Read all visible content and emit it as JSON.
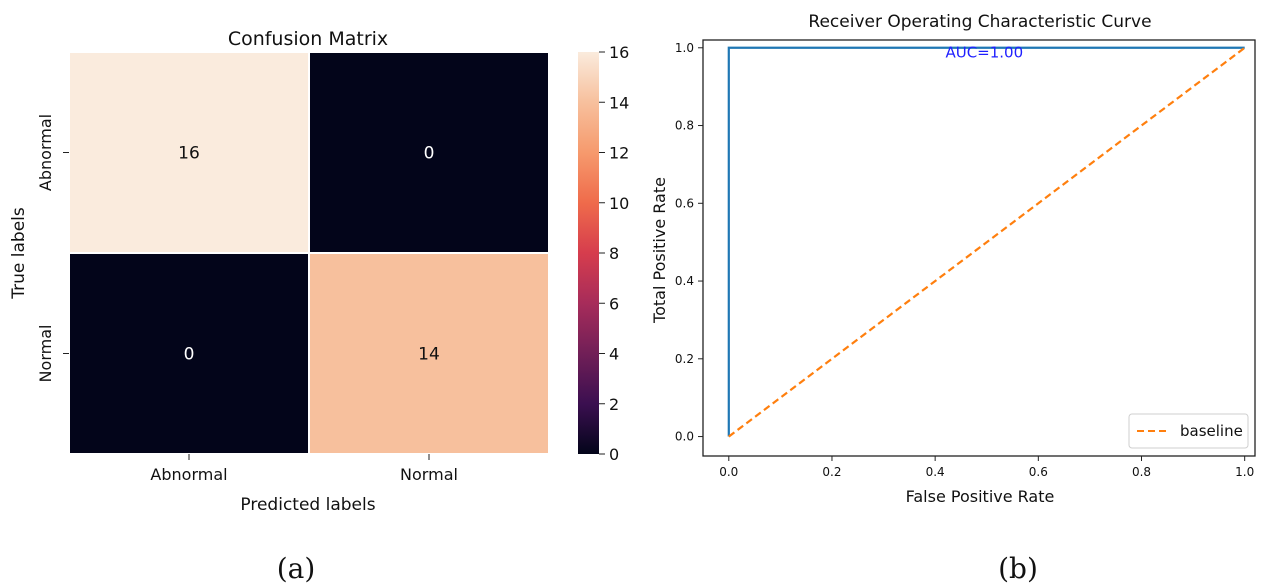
{
  "panels": {
    "a_label": "(a)",
    "b_label": "(b)"
  },
  "chart_data": [
    {
      "type": "heatmap",
      "title": "Confusion Matrix",
      "xlabel": "Predicted labels",
      "ylabel": "True labels",
      "x_categories": [
        "Abnormal",
        "Normal"
      ],
      "y_categories": [
        "Abnormal",
        "Normal"
      ],
      "values": [
        [
          16,
          0
        ],
        [
          0,
          14
        ]
      ],
      "value_range": [
        0,
        16
      ],
      "colorbar": {
        "ticks": [
          "0",
          "2",
          "4",
          "6",
          "8",
          "10",
          "12",
          "14",
          "16"
        ],
        "colors": [
          "#03051a",
          "#3b0f50",
          "#711f57",
          "#a72c5a",
          "#d63d4d",
          "#ef6b4b",
          "#f69a6d",
          "#f7c09d",
          "#faebdd"
        ]
      }
    },
    {
      "type": "line",
      "title": "Receiver Operating Characteristic Curve",
      "xlabel": "False Positive Rate",
      "ylabel": "Total Positive Rate",
      "xlim": [
        -0.05,
        1.02
      ],
      "ylim": [
        -0.05,
        1.02
      ],
      "x_ticks": [
        "0.0",
        "0.2",
        "0.4",
        "0.6",
        "0.8",
        "1.0"
      ],
      "y_ticks": [
        "0.0",
        "0.2",
        "0.4",
        "0.6",
        "0.8",
        "1.0"
      ],
      "grid": false,
      "legend_position": "bottom-right",
      "annotation": {
        "text": "AUC=1.00",
        "x": 0.42,
        "y": 0.975,
        "color": "#1f1fff"
      },
      "series": [
        {
          "x": [
            0,
            0,
            1
          ],
          "y": [
            0,
            1,
            1
          ],
          "color": "#1f77b4",
          "dash": "solid"
        },
        {
          "name": "baseline",
          "x": [
            0,
            1
          ],
          "y": [
            0,
            1
          ],
          "color": "#ff7f0e",
          "dash": "dashed"
        }
      ]
    }
  ]
}
